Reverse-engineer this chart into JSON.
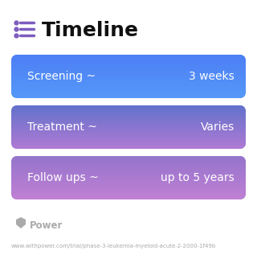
{
  "title": "Timeline",
  "title_fontsize": 18,
  "title_color": "#111111",
  "icon_color": "#7c5cbf",
  "background_color": "#ffffff",
  "rows": [
    {
      "left_label": "Screening ~",
      "right_label": "3 weeks",
      "color_top": "#4d7ef5",
      "color_bottom": "#5599f8"
    },
    {
      "left_label": "Treatment ~",
      "right_label": "Varies",
      "color_top": "#6272cc",
      "color_bottom": "#b07ad4"
    },
    {
      "left_label": "Follow ups ~",
      "right_label": "up to 5 years",
      "color_top": "#9575cc",
      "color_bottom": "#c080d5"
    }
  ],
  "row_text_color": "#ffffff",
  "row_text_fontsize": 10,
  "footer_text": "Power",
  "footer_url": "www.withpower.com/trial/phase-3-leukemia-myeloid-acute-2-2000-1f49b",
  "footer_color": "#aaaaaa",
  "footer_fontsize": 5.0
}
